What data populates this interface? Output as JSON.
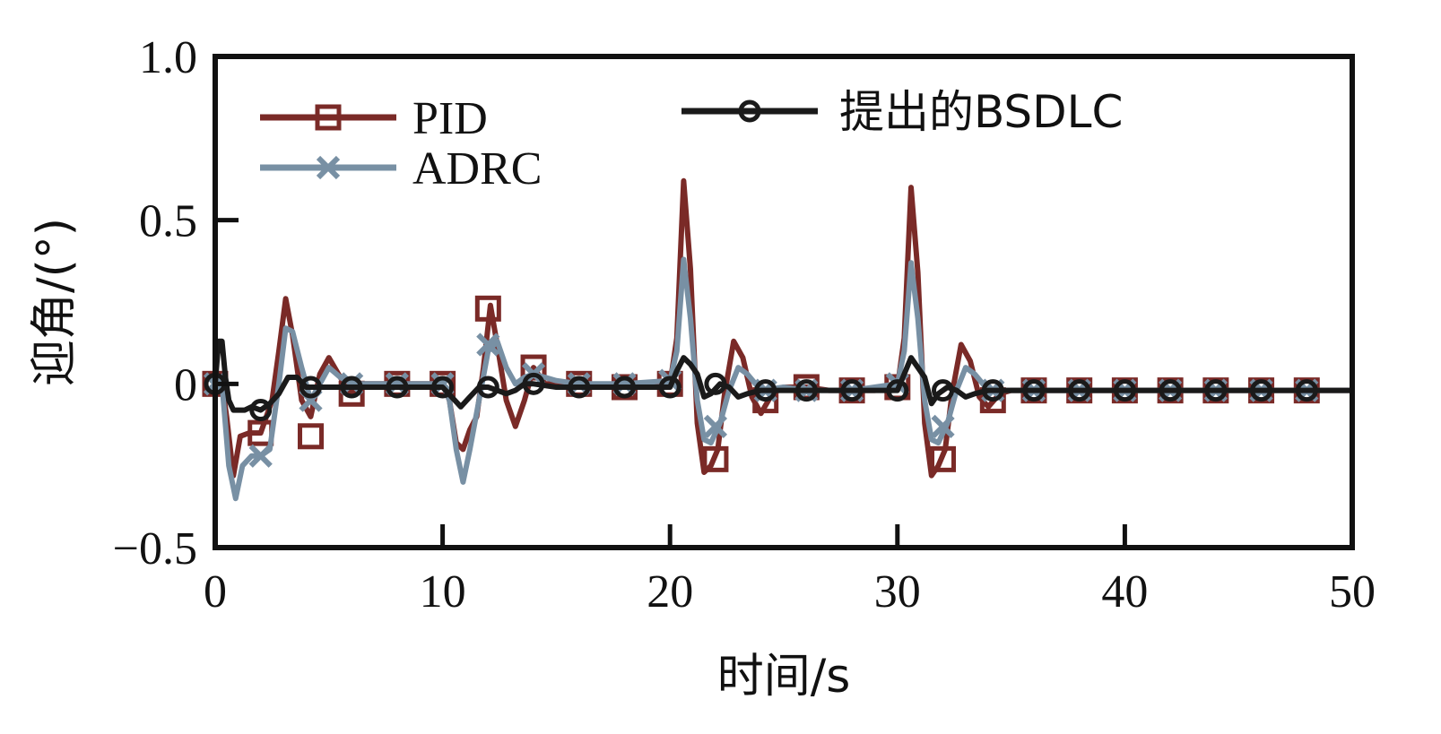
{
  "chart_data": {
    "type": "line",
    "title": "",
    "xlabel": "时间/s",
    "ylabel": "迎角/(°)",
    "xlim": [
      0,
      50
    ],
    "ylim": [
      -0.5,
      1.0
    ],
    "x_ticks": [
      0,
      10,
      20,
      30,
      40,
      50
    ],
    "x_tick_labels": [
      "0",
      "10",
      "20",
      "30",
      "40",
      "50"
    ],
    "y_ticks": [
      -0.5,
      0,
      0.5,
      1.0
    ],
    "y_tick_labels": [
      "−0.5",
      "0",
      "0.5",
      "1.0"
    ],
    "grid": false,
    "legend_position": "top",
    "series": [
      {
        "name": "PID",
        "color": "#7a2a27",
        "marker": "square",
        "x": [
          0,
          0.3,
          0.5,
          0.8,
          1.1,
          1.5,
          2,
          2.5,
          2.8,
          3.1,
          3.4,
          3.8,
          4.2,
          4.6,
          5,
          5.5,
          6,
          6.5,
          7,
          8,
          9,
          10,
          10.3,
          10.6,
          10.9,
          11.2,
          11.5,
          11.8,
          12.1,
          12.4,
          12.8,
          13.2,
          13.6,
          14,
          14.5,
          15,
          16,
          17,
          18,
          19,
          20,
          20.3,
          20.6,
          20.9,
          21.2,
          21.5,
          21.8,
          22.1,
          22.4,
          22.8,
          23.2,
          23.6,
          24,
          24.5,
          25,
          26,
          27,
          28,
          29,
          30,
          30.3,
          30.6,
          30.9,
          31.2,
          31.5,
          31.8,
          32.1,
          32.4,
          32.8,
          33.2,
          33.6,
          34,
          34.5,
          35,
          36,
          38,
          40,
          42,
          44,
          46,
          48,
          50
        ],
        "y": [
          0,
          0,
          -0.1,
          -0.28,
          -0.16,
          -0.15,
          -0.15,
          -0.05,
          0.1,
          0.26,
          0.15,
          -0.05,
          -0.1,
          0.03,
          0.08,
          0.02,
          -0.03,
          0,
          0,
          0,
          0,
          0,
          -0.05,
          -0.18,
          -0.2,
          -0.14,
          -0.1,
          0.05,
          0.24,
          0.12,
          -0.05,
          -0.13,
          -0.05,
          0.05,
          0,
          0,
          0,
          -0.01,
          -0.01,
          -0.01,
          0,
          0.14,
          0.62,
          0.35,
          -0.12,
          -0.27,
          -0.25,
          -0.2,
          -0.03,
          0.13,
          0.08,
          -0.04,
          -0.09,
          -0.03,
          -0.01,
          -0.01,
          -0.02,
          -0.02,
          -0.02,
          -0.01,
          0.14,
          0.6,
          0.34,
          -0.12,
          -0.28,
          -0.25,
          -0.2,
          -0.03,
          0.12,
          0.07,
          -0.04,
          -0.07,
          -0.03,
          -0.02,
          -0.02,
          -0.02,
          -0.02,
          -0.02,
          -0.02,
          -0.02,
          -0.02,
          -0.02
        ],
        "markers_x": [
          0,
          2,
          4.2,
          6,
          8,
          10,
          12,
          14,
          16,
          18,
          20,
          22,
          24.2,
          26,
          28,
          30,
          32,
          34.2,
          36,
          38,
          40,
          42,
          44,
          46,
          48
        ],
        "markers_y": [
          0,
          -0.15,
          -0.16,
          -0.03,
          0,
          0,
          0.23,
          0.05,
          0,
          -0.01,
          0,
          -0.23,
          -0.05,
          -0.01,
          -0.02,
          -0.01,
          -0.23,
          -0.05,
          -0.02,
          -0.02,
          -0.02,
          -0.02,
          -0.02,
          -0.02,
          -0.02
        ]
      },
      {
        "name": "ADRC",
        "color": "#7890a4",
        "marker": "x",
        "x": [
          0,
          0.3,
          0.6,
          0.9,
          1.2,
          1.6,
          2,
          2.4,
          2.8,
          3.1,
          3.4,
          3.8,
          4.2,
          4.6,
          5,
          5.5,
          6,
          7,
          8,
          9,
          10,
          10.3,
          10.6,
          10.9,
          11.2,
          11.6,
          12,
          12.4,
          12.8,
          13.2,
          13.6,
          14,
          15,
          16,
          18,
          20,
          20.3,
          20.6,
          20.9,
          21.2,
          21.5,
          21.8,
          22.2,
          22.6,
          23,
          23.4,
          24,
          25,
          26,
          28,
          30,
          30.3,
          30.6,
          30.9,
          31.2,
          31.5,
          31.8,
          32.2,
          32.6,
          33,
          33.4,
          34,
          35,
          36,
          38,
          40,
          42,
          44,
          46,
          48,
          50
        ],
        "y": [
          0,
          0,
          -0.25,
          -0.35,
          -0.25,
          -0.22,
          -0.22,
          -0.2,
          0,
          0.17,
          0.16,
          0.05,
          -0.05,
          0,
          0.05,
          0.02,
          0,
          0,
          0,
          0,
          0,
          -0.05,
          -0.2,
          -0.3,
          -0.2,
          -0.05,
          0.1,
          0.13,
          0.05,
          0,
          0.02,
          0.03,
          0.01,
          0,
          0,
          0.01,
          0.1,
          0.38,
          0.2,
          -0.05,
          -0.17,
          -0.18,
          -0.12,
          -0.02,
          0.05,
          0.03,
          -0.02,
          -0.01,
          -0.02,
          -0.02,
          0,
          0.1,
          0.37,
          0.2,
          -0.05,
          -0.17,
          -0.18,
          -0.12,
          -0.02,
          0.05,
          0.03,
          -0.02,
          -0.02,
          -0.02,
          -0.02,
          -0.02,
          -0.02,
          -0.02,
          -0.02,
          -0.02,
          -0.02
        ],
        "markers_x": [
          0,
          2,
          4.2,
          6,
          8,
          10,
          12,
          14,
          16,
          18,
          20,
          22,
          24.2,
          26,
          28,
          30,
          32,
          34.2,
          36,
          38,
          40,
          42,
          44,
          46,
          48
        ],
        "markers_y": [
          0,
          -0.22,
          -0.05,
          0,
          0,
          0,
          0.12,
          0.03,
          0,
          0,
          0.01,
          -0.13,
          -0.02,
          -0.02,
          -0.02,
          0,
          -0.13,
          -0.02,
          -0.02,
          -0.02,
          -0.02,
          -0.02,
          -0.02,
          -0.02,
          -0.02
        ]
      },
      {
        "name": "提出的BSDLC",
        "color": "#1a1a1a",
        "marker": "circle",
        "x": [
          0,
          0.15,
          0.3,
          0.45,
          0.6,
          0.8,
          1,
          1.3,
          1.6,
          2,
          2.4,
          2.8,
          3.2,
          3.6,
          4,
          4.5,
          5,
          6,
          7,
          8,
          9,
          10,
          10.4,
          10.8,
          11.2,
          11.6,
          12,
          12.4,
          12.8,
          13.2,
          13.6,
          14,
          15,
          16,
          17,
          18,
          19,
          20,
          20.3,
          20.6,
          20.9,
          21.2,
          21.5,
          21.8,
          22.2,
          22.6,
          23,
          23.4,
          24,
          25,
          26,
          28,
          30,
          30.3,
          30.6,
          30.9,
          31.2,
          31.5,
          31.8,
          32.2,
          32.6,
          33,
          33.4,
          34,
          35,
          36,
          38,
          40,
          42,
          44,
          46,
          48,
          50
        ],
        "y": [
          0,
          0.13,
          0.13,
          0.02,
          -0.05,
          -0.08,
          -0.08,
          -0.08,
          -0.07,
          -0.08,
          -0.06,
          -0.03,
          0.02,
          0.02,
          -0.01,
          -0.01,
          -0.01,
          -0.01,
          -0.01,
          -0.01,
          -0.01,
          -0.01,
          -0.04,
          -0.07,
          -0.04,
          -0.01,
          -0.01,
          -0.02,
          -0.03,
          -0.02,
          0,
          0,
          -0.01,
          -0.01,
          -0.01,
          -0.01,
          -0.01,
          -0.01,
          0.04,
          0.08,
          0.06,
          0.03,
          -0.04,
          -0.03,
          0,
          -0.01,
          -0.04,
          -0.03,
          -0.02,
          -0.02,
          -0.02,
          -0.02,
          -0.02,
          0.03,
          0.08,
          0.05,
          0.02,
          -0.06,
          -0.03,
          -0.01,
          -0.02,
          -0.04,
          -0.03,
          -0.02,
          -0.02,
          -0.02,
          -0.02,
          -0.02,
          -0.02,
          -0.02,
          -0.02,
          -0.02,
          -0.02
        ],
        "markers_x": [
          0,
          2,
          4.2,
          6,
          8,
          10,
          12,
          14,
          16,
          18,
          20,
          22,
          24.2,
          26,
          28,
          30,
          32,
          34.2,
          36,
          38,
          40,
          42,
          44,
          46,
          48
        ],
        "markers_y": [
          0,
          -0.08,
          -0.01,
          -0.01,
          -0.01,
          -0.01,
          -0.01,
          0,
          -0.01,
          -0.01,
          -0.01,
          0,
          -0.02,
          -0.02,
          -0.02,
          -0.02,
          -0.02,
          -0.02,
          -0.02,
          -0.02,
          -0.02,
          -0.02,
          -0.02,
          -0.02,
          -0.02
        ]
      }
    ]
  }
}
